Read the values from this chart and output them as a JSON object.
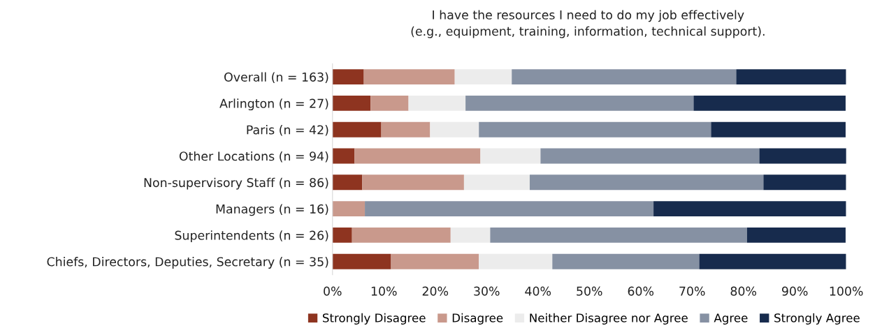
{
  "chart_data": {
    "type": "bar",
    "orientation": "horizontal",
    "stacked": true,
    "title": "I have the resources I need to do my job effectively\n(e.g., equipment, training, information, technical support).",
    "categories": [
      "Overall (n = 163)",
      "Arlington (n = 27)",
      "Paris (n = 42)",
      "Other Locations (n = 94)",
      "Non-supervisory Staff (n = 86)",
      "Managers (n = 16)",
      "Superintendents (n = 26)",
      "Chiefs, Directors, Deputies, Secretary (n = 35)"
    ],
    "series": [
      {
        "name": "Strongly Disagree",
        "color": "#8e3420",
        "values": [
          6.1,
          7.4,
          9.5,
          4.3,
          5.8,
          0,
          3.8,
          11.4
        ]
      },
      {
        "name": "Disagree",
        "color": "#c9998c",
        "values": [
          17.7,
          7.4,
          9.5,
          24.5,
          19.8,
          6.3,
          19.2,
          17.1
        ]
      },
      {
        "name": "Neither Disagree nor Agree",
        "color": "#ececec",
        "values": [
          11.1,
          11.1,
          9.5,
          11.7,
          12.8,
          0,
          7.7,
          14.3
        ]
      },
      {
        "name": "Agree",
        "color": "#8691a3",
        "values": [
          43.7,
          44.4,
          45.2,
          42.6,
          45.5,
          56.2,
          50.0,
          28.6
        ]
      },
      {
        "name": "Strongly Agree",
        "color": "#172b4d",
        "values": [
          21.4,
          29.6,
          26.2,
          17.0,
          16.1,
          37.5,
          19.2,
          28.6
        ]
      }
    ],
    "xlim": [
      0,
      100
    ],
    "xticks": [
      {
        "value": 0,
        "label": "0%"
      },
      {
        "value": 10,
        "label": "10%"
      },
      {
        "value": 20,
        "label": "20%"
      },
      {
        "value": 30,
        "label": "30%"
      },
      {
        "value": 40,
        "label": "40%"
      },
      {
        "value": 50,
        "label": "50%"
      },
      {
        "value": 60,
        "label": "60%"
      },
      {
        "value": 70,
        "label": "70%"
      },
      {
        "value": 80,
        "label": "80%"
      },
      {
        "value": 90,
        "label": "90%"
      },
      {
        "value": 100,
        "label": "100%"
      }
    ],
    "grid": false,
    "legend": "bottom"
  }
}
